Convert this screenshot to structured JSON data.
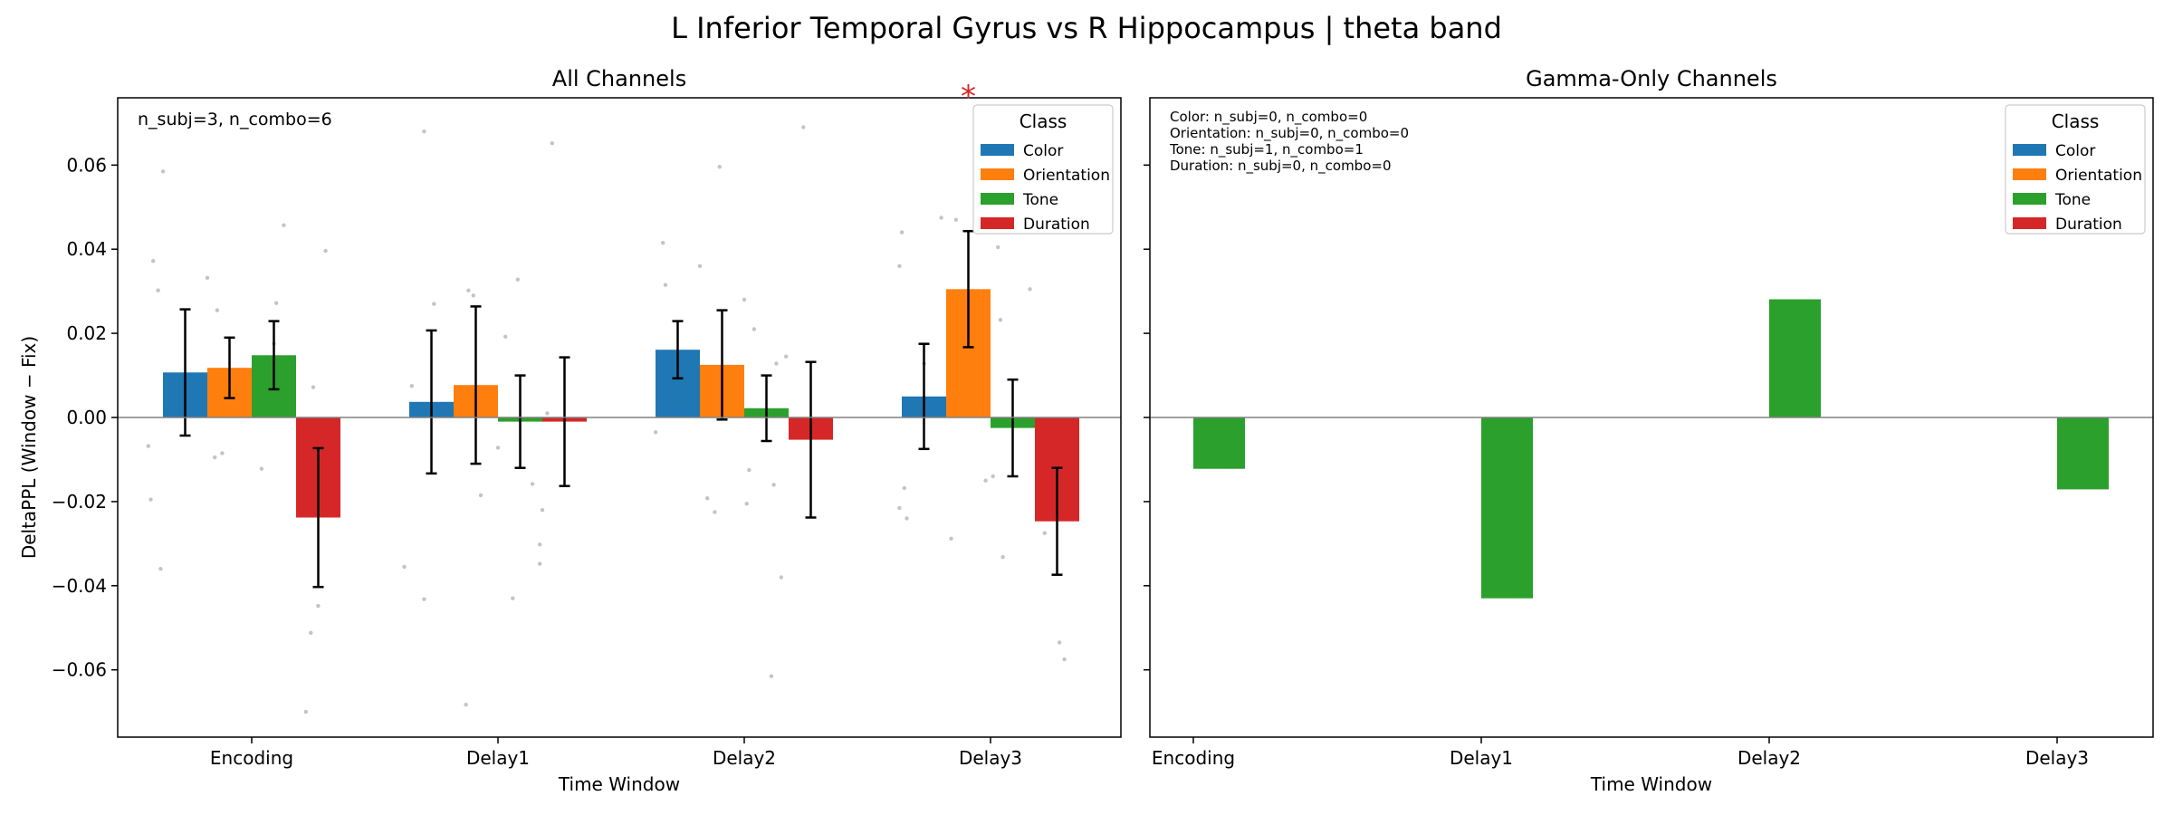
{
  "figure": {
    "suptitle": "L Inferior Temporal Gyrus vs R Hippocampus  |  theta band"
  },
  "colors": {
    "Color": "#1f77b4",
    "Orientation": "#ff7f0e",
    "Tone": "#2ca02c",
    "Duration": "#d62728",
    "significance": "#d62728",
    "scatter": "#b0b0b0"
  },
  "chart_data": [
    {
      "type": "bar",
      "title": "All Channels",
      "xlabel": "Time Window",
      "ylabel": "DeltaPPL (Window − Fix)",
      "ylim": [
        -0.076,
        0.076
      ],
      "yticks": [
        -0.06,
        -0.04,
        -0.02,
        0.0,
        0.02,
        0.04,
        0.06
      ],
      "ytick_labels": [
        "−0.06",
        "−0.04",
        "−0.02",
        "0.00",
        "0.02",
        "0.04",
        "0.06"
      ],
      "categories": [
        "Encoding",
        "Delay1",
        "Delay2",
        "Delay3"
      ],
      "annotation": "n_subj=3, n_combo=6",
      "legend": {
        "title": "Class",
        "position": "top-right"
      },
      "significance": {
        "category": "Delay3",
        "series": "Orientation",
        "marker": "*"
      },
      "series": [
        {
          "name": "Color",
          "values": [
            0.0107,
            0.0037,
            0.0161,
            0.005
          ],
          "errors": [
            0.015,
            0.017,
            0.0068,
            0.0125
          ]
        },
        {
          "name": "Orientation",
          "values": [
            0.0118,
            0.0077,
            0.0125,
            0.0305
          ],
          "errors": [
            0.0072,
            0.0187,
            0.013,
            0.0138
          ]
        },
        {
          "name": "Tone",
          "values": [
            0.0148,
            -0.001,
            0.0022,
            -0.0025
          ],
          "errors": [
            0.0081,
            0.011,
            0.0078,
            0.0115
          ]
        },
        {
          "name": "Duration",
          "values": [
            -0.0238,
            -0.001,
            -0.0053,
            -0.0247
          ],
          "errors": [
            0.0165,
            0.0153,
            0.0185,
            0.0127
          ]
        }
      ],
      "points": [
        [
          -0.36,
          0.0585
        ],
        [
          -0.4,
          0.0372
        ],
        [
          -0.38,
          0.0302
        ],
        [
          -0.42,
          -0.0068
        ],
        [
          -0.41,
          -0.0195
        ],
        [
          -0.37,
          -0.036
        ],
        [
          -0.18,
          0.0332
        ],
        [
          -0.14,
          0.0255
        ],
        [
          -0.12,
          -0.0085
        ],
        [
          -0.15,
          -0.0095
        ],
        [
          0.13,
          0.0457
        ],
        [
          0.1,
          0.0272
        ],
        [
          0.09,
          0.0175
        ],
        [
          0.04,
          -0.0122
        ],
        [
          0.3,
          0.0396
        ],
        [
          0.25,
          0.0072
        ],
        [
          0.27,
          -0.0448
        ],
        [
          0.24,
          -0.0512
        ],
        [
          0.22,
          -0.07
        ],
        [
          0.7,
          0.068
        ],
        [
          0.74,
          0.027
        ],
        [
          0.65,
          0.0075
        ],
        [
          0.62,
          -0.0355
        ],
        [
          0.7,
          -0.0432
        ],
        [
          0.88,
          0.0302
        ],
        [
          0.9,
          0.029
        ],
        [
          0.93,
          -0.0185
        ],
        [
          0.87,
          -0.0683
        ],
        [
          1.03,
          0.0192
        ],
        [
          1.0,
          -0.0072
        ],
        [
          1.08,
          0.0328
        ],
        [
          1.06,
          -0.043
        ],
        [
          1.14,
          -0.0158
        ],
        [
          1.22,
          0.0652
        ],
        [
          1.2,
          0.001
        ],
        [
          1.18,
          -0.022
        ],
        [
          1.17,
          -0.0302
        ],
        [
          1.17,
          -0.0348
        ],
        [
          1.67,
          0.0415
        ],
        [
          1.68,
          0.0315
        ],
        [
          1.64,
          -0.0035
        ],
        [
          1.82,
          0.036
        ],
        [
          1.9,
          0.0596
        ],
        [
          1.88,
          -0.0225
        ],
        [
          1.85,
          -0.0192
        ],
        [
          2.0,
          0.028
        ],
        [
          2.04,
          0.021
        ],
        [
          2.02,
          -0.0125
        ],
        [
          2.01,
          -0.0205
        ],
        [
          2.13,
          0.0128
        ],
        [
          2.17,
          0.0145
        ],
        [
          2.12,
          -0.016
        ],
        [
          2.15,
          -0.038
        ],
        [
          2.11,
          -0.0615
        ],
        [
          2.24,
          0.069
        ],
        [
          2.64,
          0.044
        ],
        [
          2.63,
          0.036
        ],
        [
          2.65,
          -0.0168
        ],
        [
          2.63,
          -0.0215
        ],
        [
          2.66,
          -0.024
        ],
        [
          2.73,
          0.0128
        ],
        [
          2.8,
          0.0475
        ],
        [
          2.86,
          0.047
        ],
        [
          2.84,
          -0.0288
        ],
        [
          3.03,
          0.0405
        ],
        [
          3.04,
          0.0232
        ],
        [
          3.01,
          -0.014
        ],
        [
          3.05,
          -0.0332
        ],
        [
          3.16,
          0.0305
        ],
        [
          3.22,
          -0.0275
        ],
        [
          3.28,
          -0.0535
        ],
        [
          3.3,
          -0.0575
        ],
        [
          2.98,
          -0.015
        ]
      ]
    },
    {
      "type": "bar",
      "title": "Gamma-Only Channels",
      "xlabel": "Time Window",
      "ylim": [
        -0.076,
        0.076
      ],
      "categories": [
        "Encoding",
        "Delay1",
        "Delay2",
        "Delay3"
      ],
      "annotation_lines": [
        "Color: n_subj=0, n_combo=0",
        "Orientation: n_subj=0, n_combo=0",
        "Tone: n_subj=1, n_combo=1",
        "Duration: n_subj=0, n_combo=0"
      ],
      "legend": {
        "title": "Class",
        "position": "top-right"
      },
      "series": [
        {
          "name": "Color",
          "values": [
            null,
            null,
            null,
            null
          ]
        },
        {
          "name": "Orientation",
          "values": [
            null,
            null,
            null,
            null
          ]
        },
        {
          "name": "Tone",
          "values": [
            -0.0122,
            -0.043,
            0.0281,
            -0.0171
          ]
        },
        {
          "name": "Duration",
          "values": [
            null,
            null,
            null,
            null
          ]
        }
      ]
    }
  ]
}
